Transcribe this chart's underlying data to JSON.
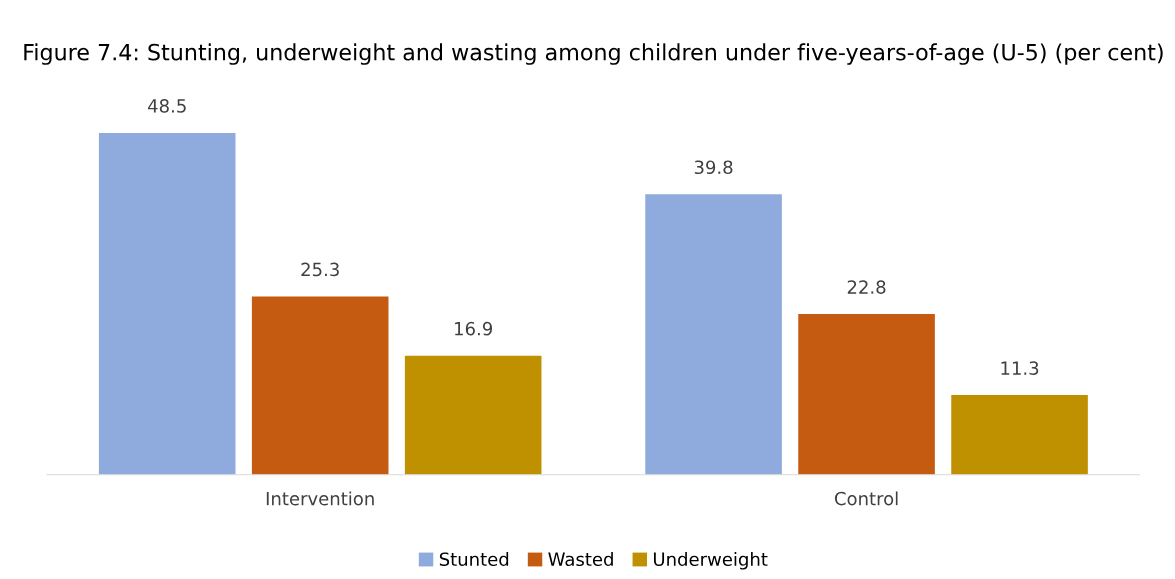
{
  "chart_data": {
    "type": "bar",
    "title": "Figure 7.4: Stunting, underweight and wasting among children under five-years-of-age (U-5) (per cent)",
    "categories": [
      "Intervention",
      "Control"
    ],
    "series": [
      {
        "name": "Stunted",
        "color": "#8faadc",
        "values": [
          48.5,
          39.8
        ]
      },
      {
        "name": "Wasted",
        "color": "#c55a11",
        "values": [
          25.3,
          22.8
        ]
      },
      {
        "name": "Underweight",
        "color": "#bf9000",
        "values": [
          16.9,
          11.3
        ]
      }
    ],
    "data_labels": true,
    "legend": "bottom",
    "grid": false,
    "tick_labels": "x"
  }
}
